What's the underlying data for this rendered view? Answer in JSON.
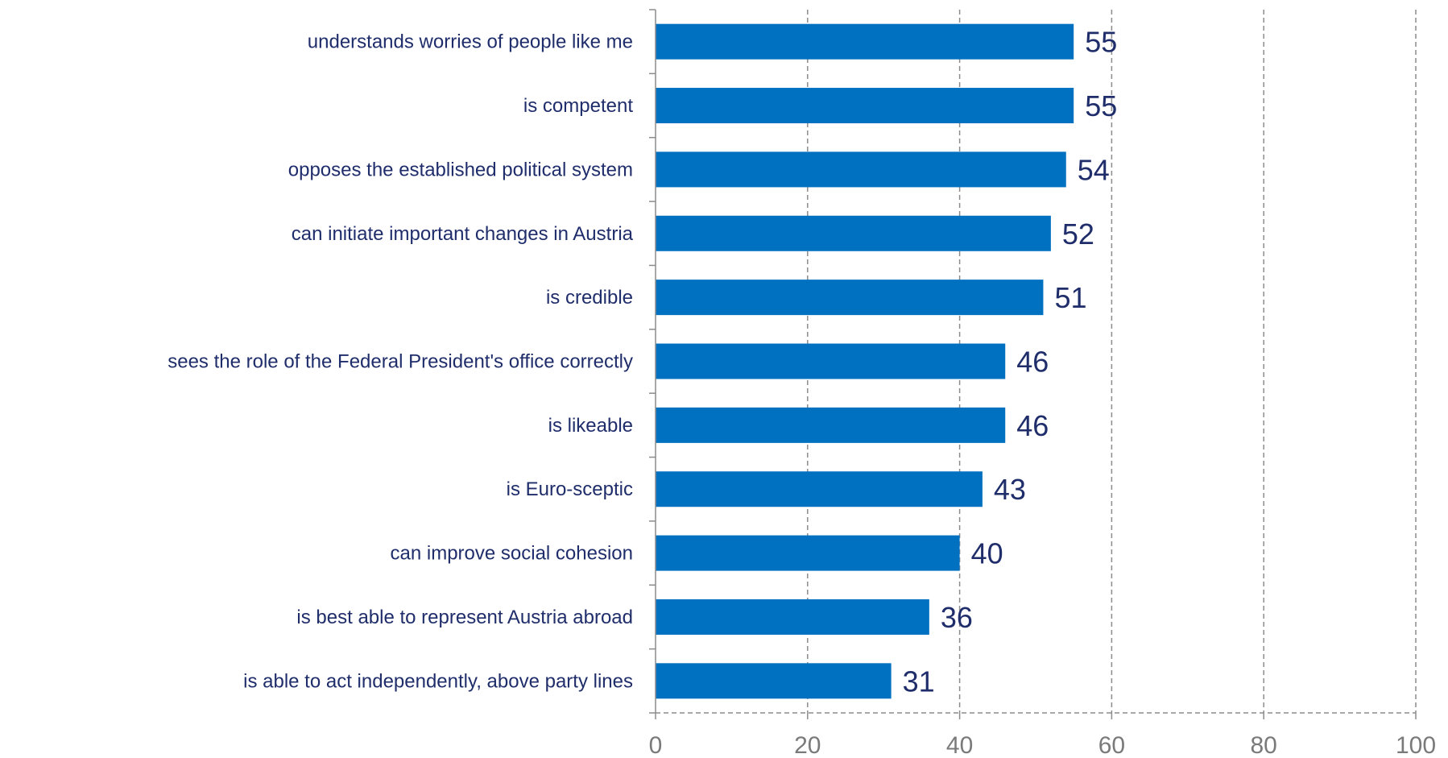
{
  "chart_data": {
    "type": "bar",
    "orientation": "horizontal",
    "categories": [
      "understands worries of people like me",
      "is competent",
      "opposes the established political system",
      "can initiate important changes in Austria",
      "is credible",
      "sees the role of the Federal President's office correctly",
      "is likeable",
      "is Euro-sceptic",
      "can improve social cohesion",
      "is best able to represent Austria abroad",
      "is able to act independently, above party lines"
    ],
    "values": [
      55,
      55,
      54,
      52,
      51,
      46,
      46,
      43,
      40,
      36,
      31
    ],
    "value_labels": [
      "55",
      "55",
      "54",
      "52",
      "51",
      "46",
      "46",
      "43",
      "40",
      "36",
      "31"
    ],
    "x_ticks": [
      "0",
      "20",
      "40",
      "60",
      "80",
      "100"
    ],
    "xlim": [
      0,
      100
    ],
    "xlabel": "",
    "ylabel": "",
    "title": "",
    "grid": true,
    "legend": "none",
    "colors": {
      "bar": "#0070c0",
      "text": "#1f2d6b",
      "tick": "#7a7a7a",
      "grid": "#8c8c8c"
    }
  }
}
